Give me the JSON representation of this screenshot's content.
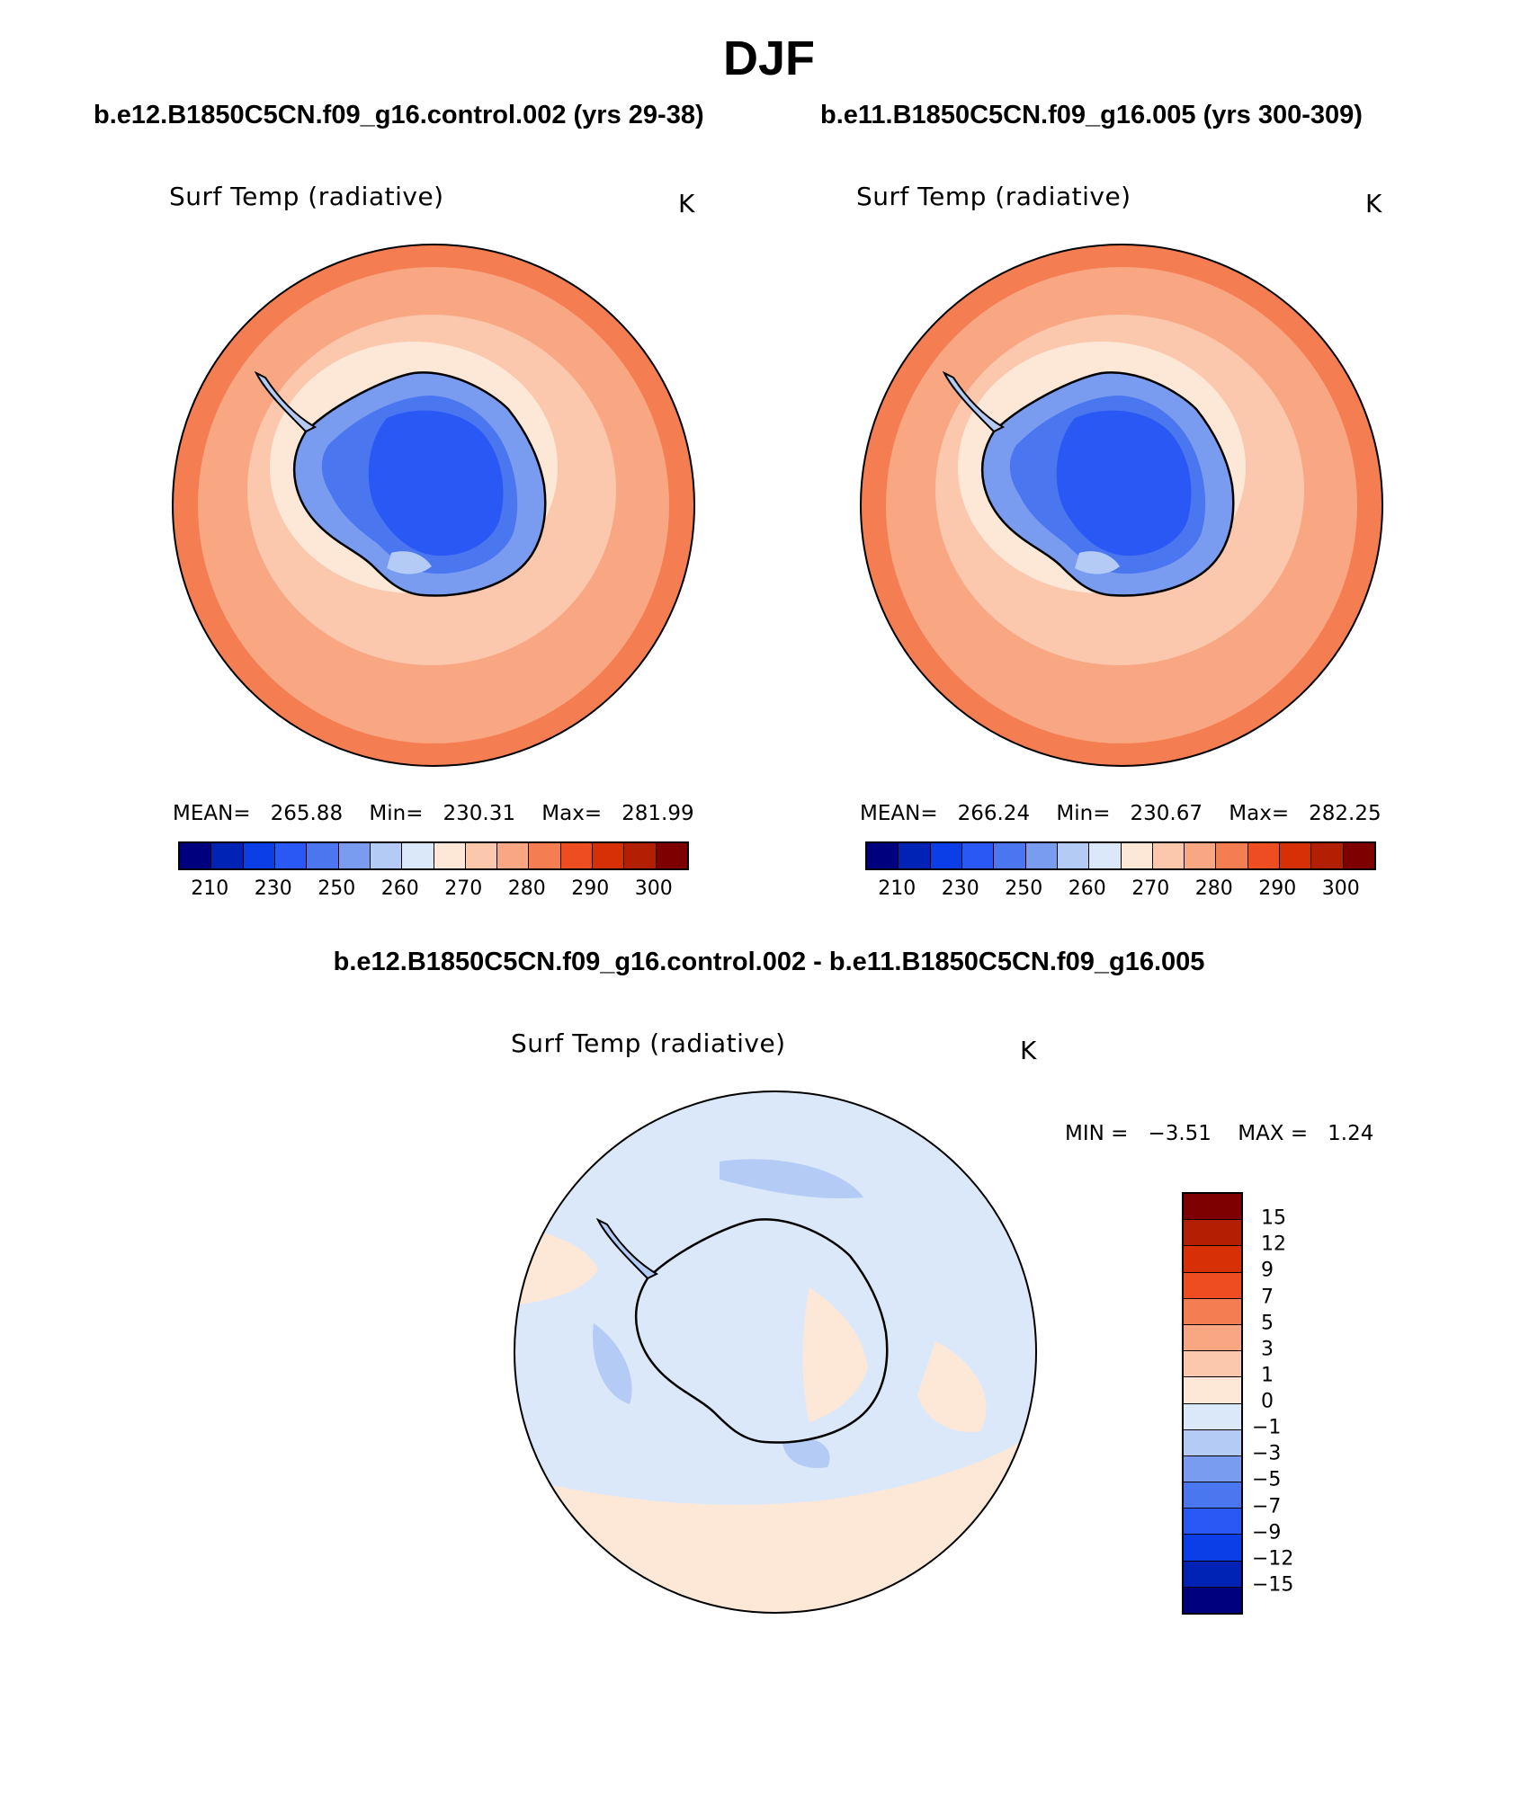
{
  "page_title": "DJF",
  "colors": {
    "abs_scale": [
      "#00007f",
      "#0022b5",
      "#0b3ee6",
      "#2a58f5",
      "#4a76ef",
      "#7a9cf0",
      "#b4cbf5",
      "#dbe8fa",
      "#fde8d8",
      "#fbc8ad",
      "#f9a682",
      "#f57d52",
      "#ee4d22",
      "#d72f06",
      "#b31f02",
      "#7f0000"
    ],
    "diff_scale_top_to_bottom": [
      "#7f0000",
      "#b31f02",
      "#d72f06",
      "#ee4d22",
      "#f57d52",
      "#f9a682",
      "#fbc8ad",
      "#fde8d8",
      "#dbe8fa",
      "#b4cbf5",
      "#7a9cf0",
      "#4a76ef",
      "#2a58f5",
      "#0b3ee6",
      "#0022b5",
      "#00007f"
    ]
  },
  "panels": [
    {
      "case_title": "b.e12.B1850C5CN.f09_g16.control.002 (yrs 29-38)",
      "variable": "Surf Temp (radiative)",
      "units": "K",
      "mean_label": "MEAN=",
      "mean": "265.88",
      "min_label": "Min=",
      "min": "230.31",
      "max_label": "Max=",
      "max": "281.99",
      "colorbar_ticks": [
        "210",
        "230",
        "250",
        "260",
        "270",
        "280",
        "290",
        "300"
      ]
    },
    {
      "case_title": "b.e11.B1850C5CN.f09_g16.005 (yrs 300-309)",
      "variable": "Surf Temp (radiative)",
      "units": "K",
      "mean_label": "MEAN=",
      "mean": "266.24",
      "min_label": "Min=",
      "min": "230.67",
      "max_label": "Max=",
      "max": "282.25",
      "colorbar_ticks": [
        "210",
        "230",
        "250",
        "260",
        "270",
        "280",
        "290",
        "300"
      ]
    }
  ],
  "diff_panel": {
    "case_title": "b.e12.B1850C5CN.f09_g16.control.002 - b.e11.B1850C5CN.f09_g16.005",
    "variable": "Surf Temp (radiative)",
    "units": "K",
    "min_label": "MIN =",
    "min": "−3.51",
    "max_label": "MAX =",
    "max": "1.24",
    "colorbar_ticks": [
      "15",
      "12",
      "9",
      "7",
      "5",
      "3",
      "1",
      "0",
      "−1",
      "−3",
      "−5",
      "−7",
      "−9",
      "−12",
      "−15"
    ]
  }
}
